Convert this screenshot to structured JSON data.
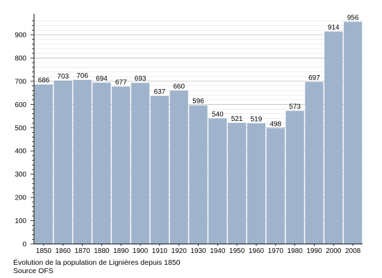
{
  "chart_data": {
    "type": "bar",
    "categories": [
      "1850",
      "1860",
      "1870",
      "1880",
      "1890",
      "1900",
      "1910",
      "1920",
      "1930",
      "1940",
      "1950",
      "1960",
      "1970",
      "1980",
      "1990",
      "2000",
      "2008"
    ],
    "values": [
      686,
      703,
      706,
      694,
      677,
      693,
      637,
      660,
      596,
      540,
      521,
      519,
      498,
      573,
      697,
      914,
      956
    ],
    "yticks": [
      0,
      100,
      200,
      300,
      400,
      500,
      600,
      700,
      800,
      900
    ],
    "ylim": [
      0,
      970
    ],
    "grid": true,
    "bar_color": "#9fb4cc",
    "grid_color": "#bbbbbb"
  },
  "caption": {
    "line1": "Évolution de la population de Lignières depuis 1850",
    "line2": "Source OFS"
  }
}
